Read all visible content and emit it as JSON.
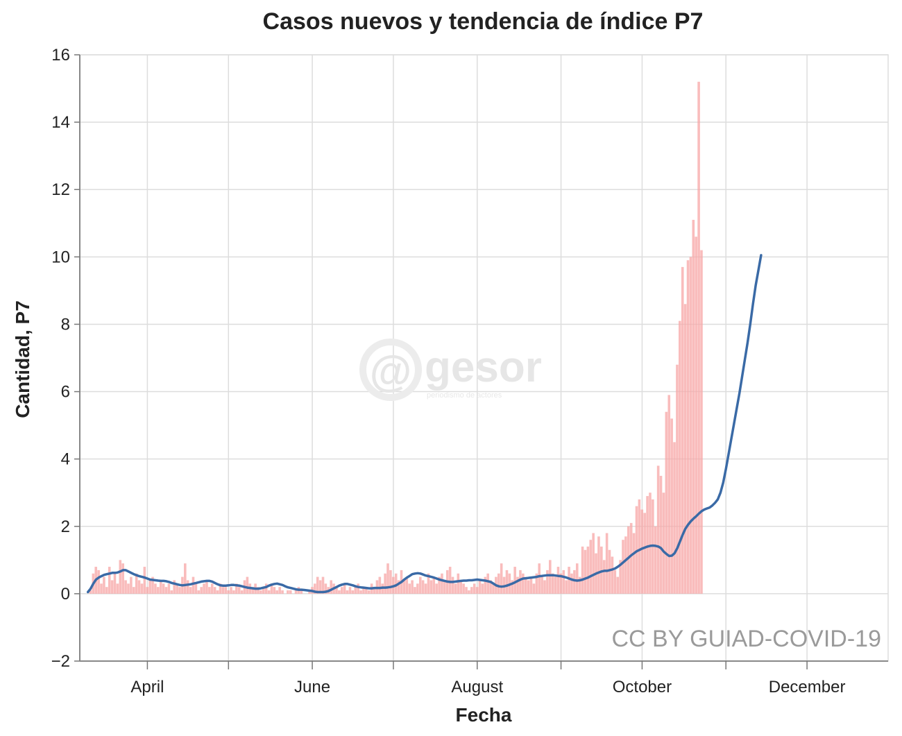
{
  "chart_data": {
    "type": "bar",
    "title": "Casos nuevos y tendencia de índice P7",
    "xlabel": "Fecha",
    "ylabel": "Cantidad, P7",
    "ylim": [
      -2,
      16
    ],
    "yticks": [
      -2,
      0,
      2,
      4,
      6,
      8,
      10,
      12,
      14,
      16
    ],
    "xlim": [
      "2020-03-07",
      "2020-12-31"
    ],
    "x_tick_labels": [
      {
        "date": "2020-04-01",
        "label": "April"
      },
      {
        "date": "2020-06-01",
        "label": "June"
      },
      {
        "date": "2020-08-01",
        "label": "August"
      },
      {
        "date": "2020-10-01",
        "label": "October"
      },
      {
        "date": "2020-12-01",
        "label": "December"
      }
    ],
    "x_minor_ticks": [
      "2020-05-01",
      "2020-07-01",
      "2020-09-01",
      "2020-11-01"
    ],
    "grid": true,
    "series": [
      {
        "type": "bar",
        "color": "#f7a6a6",
        "x_start": "2020-03-10",
        "step_days": 1,
        "values": [
          0.0,
          0.1,
          0.6,
          0.8,
          0.7,
          0.3,
          0.5,
          0.2,
          0.8,
          0.4,
          0.6,
          0.3,
          1.0,
          0.9,
          0.4,
          0.3,
          0.5,
          0.2,
          0.6,
          0.4,
          0.3,
          0.8,
          0.2,
          0.4,
          0.5,
          0.3,
          0.2,
          0.4,
          0.3,
          0.2,
          0.3,
          0.1,
          0.4,
          0.3,
          0.2,
          0.5,
          0.9,
          0.4,
          0.2,
          0.5,
          0.3,
          0.1,
          0.2,
          0.3,
          0.4,
          0.2,
          0.3,
          0.2,
          0.1,
          0.3,
          0.2,
          0.2,
          0.1,
          0.2,
          0.1,
          0.3,
          0.2,
          0.1,
          0.4,
          0.5,
          0.3,
          0.2,
          0.3,
          0.2,
          0.1,
          0.2,
          0.3,
          0.1,
          0.3,
          0.2,
          0.1,
          0.2,
          0.1,
          0.0,
          0.1,
          0.1,
          0.0,
          0.1,
          0.2,
          0.1,
          0.0,
          0.0,
          0.1,
          0.2,
          0.3,
          0.5,
          0.4,
          0.5,
          0.3,
          0.2,
          0.4,
          0.3,
          0.2,
          0.1,
          0.2,
          0.3,
          0.1,
          0.2,
          0.1,
          0.2,
          0.3,
          0.1,
          0.2,
          0.2,
          0.1,
          0.3,
          0.2,
          0.4,
          0.5,
          0.3,
          0.6,
          0.9,
          0.7,
          0.5,
          0.6,
          0.4,
          0.7,
          0.4,
          0.5,
          0.3,
          0.4,
          0.2,
          0.3,
          0.5,
          0.4,
          0.3,
          0.6,
          0.4,
          0.5,
          0.3,
          0.5,
          0.6,
          0.4,
          0.7,
          0.8,
          0.5,
          0.3,
          0.6,
          0.4,
          0.3,
          0.2,
          0.1,
          0.2,
          0.3,
          0.2,
          0.4,
          0.3,
          0.5,
          0.6,
          0.4,
          0.3,
          0.5,
          0.6,
          0.9,
          0.5,
          0.7,
          0.6,
          0.4,
          0.8,
          0.5,
          0.7,
          0.6,
          0.5,
          0.4,
          0.5,
          0.3,
          0.6,
          0.9,
          0.5,
          0.4,
          0.7,
          1.0,
          0.6,
          0.5,
          0.8,
          0.6,
          0.7,
          0.4,
          0.8,
          0.6,
          0.7,
          0.9,
          0.5,
          1.4,
          1.3,
          1.4,
          1.6,
          1.8,
          1.2,
          1.7,
          1.4,
          1.0,
          1.8,
          1.3,
          1.1,
          0.7,
          0.5,
          1.0,
          1.6,
          1.7,
          2.0,
          2.1,
          1.8,
          2.6,
          2.8,
          2.5,
          2.4,
          2.9,
          3.0,
          2.8,
          2.0,
          3.8,
          3.5,
          3.0,
          5.4,
          5.9,
          5.2,
          4.5,
          6.8,
          8.1,
          9.7,
          8.6,
          9.9,
          10.0,
          11.1,
          10.6,
          15.2,
          10.2
        ]
      },
      {
        "type": "line",
        "color": "#3a6aa6",
        "x_start": "2020-03-10",
        "step_days": 1,
        "values": [
          0.05,
          0.15,
          0.3,
          0.42,
          0.48,
          0.52,
          0.56,
          0.58,
          0.6,
          0.62,
          0.62,
          0.63,
          0.66,
          0.7,
          0.7,
          0.66,
          0.62,
          0.58,
          0.55,
          0.52,
          0.5,
          0.48,
          0.45,
          0.42,
          0.41,
          0.4,
          0.39,
          0.38,
          0.38,
          0.37,
          0.35,
          0.32,
          0.3,
          0.28,
          0.26,
          0.25,
          0.26,
          0.27,
          0.28,
          0.3,
          0.32,
          0.34,
          0.36,
          0.37,
          0.38,
          0.38,
          0.36,
          0.32,
          0.28,
          0.25,
          0.24,
          0.24,
          0.25,
          0.26,
          0.26,
          0.25,
          0.24,
          0.22,
          0.2,
          0.18,
          0.17,
          0.16,
          0.15,
          0.15,
          0.16,
          0.18,
          0.2,
          0.24,
          0.27,
          0.29,
          0.3,
          0.28,
          0.26,
          0.22,
          0.19,
          0.17,
          0.15,
          0.13,
          0.12,
          0.12,
          0.11,
          0.1,
          0.09,
          0.08,
          0.06,
          0.05,
          0.05,
          0.05,
          0.06,
          0.08,
          0.12,
          0.16,
          0.2,
          0.24,
          0.27,
          0.29,
          0.29,
          0.27,
          0.25,
          0.22,
          0.2,
          0.19,
          0.18,
          0.17,
          0.16,
          0.16,
          0.17,
          0.17,
          0.17,
          0.18,
          0.18,
          0.19,
          0.2,
          0.22,
          0.25,
          0.3,
          0.35,
          0.42,
          0.48,
          0.53,
          0.58,
          0.6,
          0.61,
          0.6,
          0.57,
          0.54,
          0.52,
          0.5,
          0.48,
          0.45,
          0.42,
          0.4,
          0.38,
          0.36,
          0.35,
          0.35,
          0.36,
          0.37,
          0.38,
          0.39,
          0.39,
          0.4,
          0.4,
          0.41,
          0.42,
          0.41,
          0.4,
          0.39,
          0.37,
          0.35,
          0.3,
          0.25,
          0.22,
          0.21,
          0.22,
          0.24,
          0.27,
          0.3,
          0.34,
          0.38,
          0.42,
          0.45,
          0.46,
          0.47,
          0.48,
          0.49,
          0.5,
          0.52,
          0.53,
          0.54,
          0.55,
          0.55,
          0.55,
          0.54,
          0.53,
          0.52,
          0.5,
          0.48,
          0.45,
          0.42,
          0.4,
          0.39,
          0.4,
          0.42,
          0.45,
          0.48,
          0.52,
          0.56,
          0.6,
          0.63,
          0.66,
          0.68,
          0.68,
          0.7,
          0.72,
          0.75,
          0.8,
          0.86,
          0.93,
          1.0,
          1.07,
          1.14,
          1.2,
          1.26,
          1.3,
          1.34,
          1.37,
          1.4,
          1.42,
          1.43,
          1.42,
          1.4,
          1.35,
          1.25,
          1.18,
          1.12,
          1.13,
          1.2,
          1.35,
          1.55,
          1.75,
          1.93,
          2.05,
          2.15,
          2.23,
          2.3,
          2.38,
          2.45,
          2.5,
          2.53,
          2.56,
          2.62,
          2.7,
          2.8,
          3.0,
          3.3,
          3.7,
          4.15,
          4.6,
          5.05,
          5.5,
          5.95,
          6.45,
          6.95,
          7.45,
          8.0,
          8.6,
          9.15,
          9.6,
          10.05
        ]
      }
    ],
    "watermark": "CC BY GUIAD-COVID-19"
  },
  "logo": {
    "at": "@",
    "text": "gesor",
    "subtext": "periodismo de actores"
  }
}
